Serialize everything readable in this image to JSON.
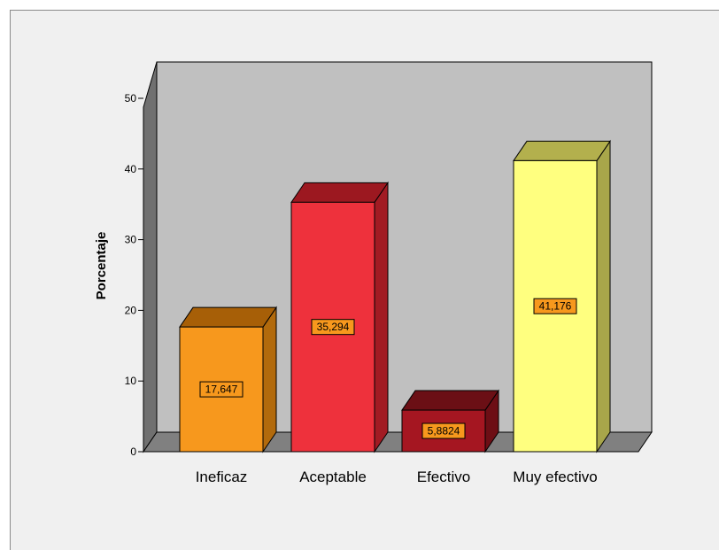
{
  "chart_data": {
    "type": "bar",
    "title": "",
    "xlabel": "",
    "ylabel": "Porcentaje",
    "ylim": [
      0,
      50
    ],
    "yticks": [
      0,
      10,
      20,
      30,
      40,
      50
    ],
    "categories": [
      "Ineficaz",
      "Aceptable",
      "Efectivo",
      "Muy efectivo"
    ],
    "values": [
      17.647,
      35.294,
      5.8824,
      41.176
    ],
    "data_labels": [
      "17,647",
      "35,294",
      "5,8824",
      "41,176"
    ],
    "colors": {
      "bars": [
        "#f7981d",
        "#ee313c",
        "#a51621",
        "#ffff7f"
      ],
      "bar_tops": [
        "#a75f07",
        "#9c1820",
        "#6b0f15",
        "#b3b04d"
      ],
      "bar_sides": [
        "#b26a0c",
        "#a21b23",
        "#6d0e15",
        "#a8a64a"
      ],
      "back_wall": "#c0c0c0",
      "side_wall": "#707070",
      "floor": "#808080",
      "data_label_bg": "#f7981d",
      "background": "#f0f0f0"
    },
    "style": "3d-bar",
    "grid": false,
    "legend": "none"
  }
}
